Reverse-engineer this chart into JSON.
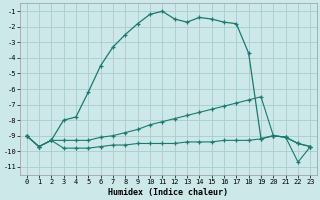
{
  "xlabel": "Humidex (Indice chaleur)",
  "bg_color": "#cce8e8",
  "grid_color": "#aacccc",
  "line_color": "#1a7a6e",
  "xlim": [
    -0.5,
    23.5
  ],
  "ylim": [
    -11.5,
    -0.5
  ],
  "yticks": [
    -1,
    -2,
    -3,
    -4,
    -5,
    -6,
    -7,
    -8,
    -9,
    -10,
    -11
  ],
  "xticks": [
    0,
    1,
    2,
    3,
    4,
    5,
    6,
    7,
    8,
    9,
    10,
    11,
    12,
    13,
    14,
    15,
    16,
    17,
    18,
    19,
    20,
    21,
    22,
    23
  ],
  "curve1_x": [
    0,
    1,
    2,
    3,
    4,
    5,
    6,
    7,
    8,
    9,
    10,
    11,
    12,
    13,
    14,
    15,
    16,
    17,
    18,
    19,
    20,
    21,
    22,
    23
  ],
  "curve1_y": [
    -9.0,
    -9.7,
    -9.3,
    -8.0,
    -7.8,
    -6.2,
    -4.5,
    -3.3,
    -2.5,
    -1.8,
    -1.2,
    -1.0,
    -1.5,
    -1.7,
    -1.4,
    -1.5,
    -1.7,
    -1.8,
    -3.7,
    -9.2,
    -9.0,
    -9.1,
    -9.5,
    -9.7
  ],
  "curve2_x": [
    0,
    1,
    2,
    3,
    4,
    5,
    6,
    7,
    8,
    9,
    10,
    11,
    12,
    13,
    14,
    15,
    16,
    17,
    18,
    19,
    20,
    21,
    22,
    23
  ],
  "curve2_y": [
    -9.0,
    -9.7,
    -9.3,
    -9.3,
    -9.3,
    -9.3,
    -9.1,
    -9.0,
    -8.8,
    -8.6,
    -8.3,
    -8.1,
    -7.9,
    -7.7,
    -7.5,
    -7.3,
    -7.1,
    -6.9,
    -6.7,
    -6.5,
    -9.0,
    -9.1,
    -9.5,
    -9.7
  ],
  "curve3_x": [
    0,
    1,
    2,
    3,
    4,
    5,
    6,
    7,
    8,
    9,
    10,
    11,
    12,
    13,
    14,
    15,
    16,
    17,
    18,
    19,
    20,
    21,
    22,
    23
  ],
  "curve3_y": [
    -9.0,
    -9.7,
    -9.3,
    -9.8,
    -9.8,
    -9.8,
    -9.7,
    -9.6,
    -9.6,
    -9.5,
    -9.5,
    -9.5,
    -9.5,
    -9.4,
    -9.4,
    -9.4,
    -9.3,
    -9.3,
    -9.3,
    -9.2,
    -9.0,
    -9.1,
    -10.7,
    -9.7
  ]
}
